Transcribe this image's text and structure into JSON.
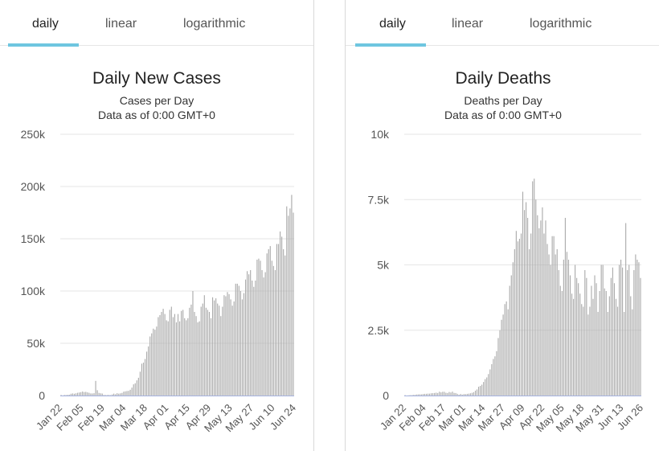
{
  "tabs": {
    "daily": "daily",
    "linear": "linear",
    "logarithmic": "logarithmic"
  },
  "chart_data": [
    {
      "type": "bar",
      "title": "Daily New Cases",
      "subtitle_line1": "Cases per Day",
      "subtitle_line2": "Data as of 0:00 GMT+0",
      "ylim": [
        0,
        250000
      ],
      "yticks": [
        0,
        50000,
        100000,
        150000,
        200000,
        250000
      ],
      "ytick_labels": [
        "0",
        "50k",
        "100k",
        "150k",
        "200k",
        "250k"
      ],
      "xtick_labels": [
        "Jan 22",
        "Feb 05",
        "Feb 19",
        "Mar 04",
        "Mar 18",
        "Apr 01",
        "Apr 15",
        "Apr 29",
        "May 13",
        "May 27",
        "Jun 10",
        "Jun 24"
      ],
      "grid": true,
      "bar_color": "#aaaaaa",
      "values": [
        600,
        100,
        600,
        500,
        700,
        800,
        1700,
        2000,
        1700,
        2100,
        2600,
        2900,
        3200,
        3800,
        3300,
        3500,
        3000,
        2600,
        2000,
        2000,
        2200,
        14000,
        5100,
        2500,
        2100,
        1900,
        600,
        500,
        500,
        600,
        400,
        1000,
        1800,
        1200,
        2200,
        1800,
        2100,
        2500,
        3700,
        4000,
        4300,
        4500,
        5500,
        7600,
        10700,
        11700,
        14500,
        17000,
        22800,
        30500,
        31500,
        35000,
        42000,
        47000,
        56500,
        59500,
        64000,
        63000,
        66000,
        75000,
        77000,
        80000,
        83000,
        78000,
        72000,
        71000,
        82000,
        85000,
        75000,
        78000,
        70000,
        78000,
        71000,
        81000,
        82000,
        74000,
        72000,
        74000,
        84000,
        87000,
        100000,
        80000,
        76000,
        70000,
        71000,
        85000,
        88000,
        96000,
        84000,
        82000,
        80000,
        74000,
        94000,
        91000,
        93000,
        88000,
        86000,
        76000,
        85000,
        96000,
        95000,
        99000,
        97000,
        92000,
        86000,
        90000,
        107000,
        107000,
        105000,
        100000,
        92000,
        98000,
        111000,
        119000,
        116000,
        120000,
        110000,
        104000,
        110000,
        130000,
        131000,
        129000,
        120000,
        113000,
        118000,
        136000,
        140000,
        143000,
        129000,
        124000,
        120000,
        145000,
        145000,
        157000,
        152000,
        140000,
        134000,
        181000,
        172000,
        179000,
        192000,
        175000
      ]
    },
    {
      "type": "bar",
      "title": "Daily Deaths",
      "subtitle_line1": "Deaths per Day",
      "subtitle_line2": "Data as of 0:00 GMT+0",
      "ylim": [
        0,
        10000
      ],
      "yticks": [
        0,
        2500,
        5000,
        7500,
        10000
      ],
      "ytick_labels": [
        "0",
        "2.5k",
        "5k",
        "7.5k",
        "10k"
      ],
      "xtick_labels": [
        "Jan 22",
        "Feb 04",
        "Feb 17",
        "Mar 01",
        "Mar 14",
        "Mar 27",
        "Apr 09",
        "Apr 22",
        "May 05",
        "May 18",
        "May 31",
        "Jun 13",
        "Jun 26"
      ],
      "grid": true,
      "bar_color": "#aaaaaa",
      "values": [
        17,
        1,
        8,
        16,
        14,
        26,
        26,
        38,
        43,
        46,
        45,
        57,
        64,
        66,
        73,
        73,
        86,
        89,
        97,
        108,
        97,
        146,
        121,
        143,
        142,
        105,
        98,
        136,
        116,
        150,
        100,
        95,
        66,
        33,
        60,
        35,
        55,
        53,
        64,
        72,
        86,
        103,
        128,
        187,
        233,
        336,
        369,
        415,
        519,
        628,
        693,
        822,
        1000,
        1200,
        1400,
        1500,
        1700,
        2200,
        2500,
        2900,
        3100,
        3500,
        3600,
        3300,
        4200,
        4600,
        5100,
        5600,
        6300,
        5900,
        6000,
        6200,
        7800,
        7100,
        7400,
        6800,
        5600,
        6200,
        8200,
        8300,
        7500,
        6900,
        6400,
        6700,
        7200,
        6200,
        6700,
        5800,
        5400,
        5000,
        6100,
        6100,
        5400,
        5600,
        4800,
        4200,
        4000,
        5200,
        6800,
        5500,
        5200,
        4600,
        3900,
        3700,
        5000,
        4500,
        4300,
        3900,
        3500,
        3400,
        4800,
        4500,
        3100,
        3400,
        4200,
        3700,
        4600,
        4300,
        3200,
        4000,
        5000,
        5000,
        4100,
        4000,
        3200,
        3800,
        4500,
        4900,
        4300,
        3700,
        3400,
        5000,
        5200,
        4900,
        3200,
        6600,
        4800,
        5000,
        3800,
        3300,
        4800,
        5400,
        5200,
        5100,
        4500
      ]
    }
  ]
}
